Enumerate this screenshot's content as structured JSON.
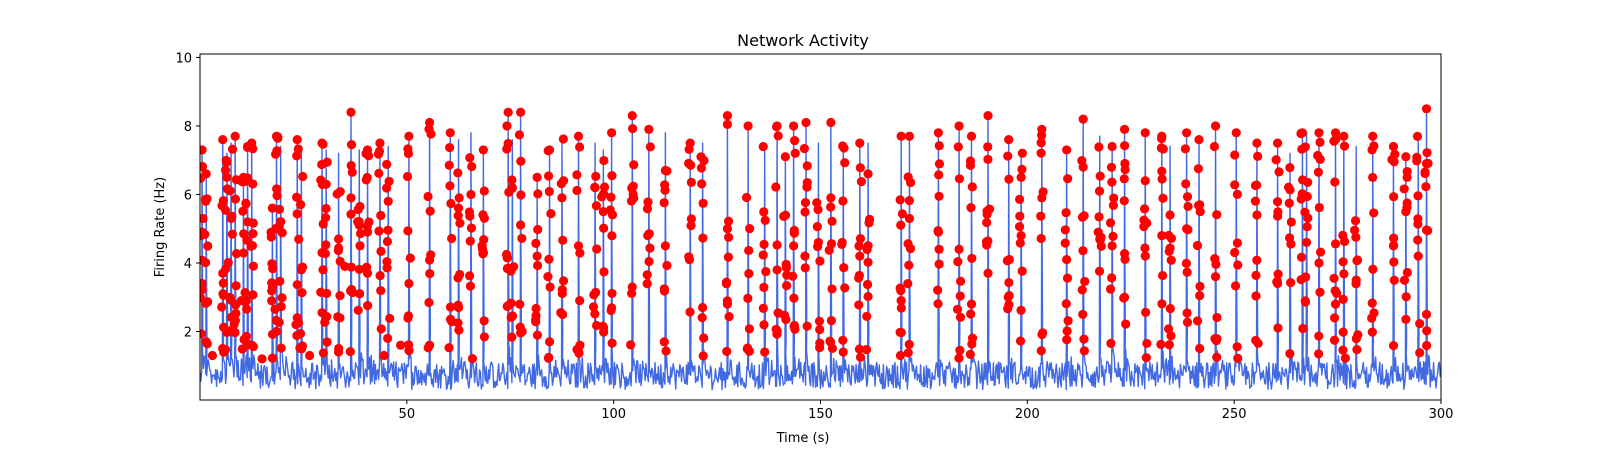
{
  "chart_data": {
    "type": "line",
    "title": "Network Activity",
    "xlabel": "Time (s)",
    "ylabel": "Firing Rate (Hz)",
    "xlim": [
      0,
      300
    ],
    "ylim": [
      0,
      10.1
    ],
    "xticks": [
      50,
      100,
      150,
      200,
      250,
      300
    ],
    "yticks": [
      2,
      4,
      6,
      8,
      10
    ],
    "grid": false,
    "colors": {
      "line": "#4169E1",
      "markers": "#FF0000"
    },
    "series": [
      {
        "kind": "line",
        "baseline": [
          0.3,
          1.1
        ],
        "bursts": [
          [
            0.5,
            7.3
          ],
          [
            1.5,
            6.6
          ],
          [
            5.5,
            7.6
          ],
          [
            6.5,
            7.2
          ],
          [
            7.5,
            7.5
          ],
          [
            8.5,
            7.7
          ],
          [
            10.5,
            6.5
          ],
          [
            11.5,
            7.4
          ],
          [
            12.5,
            7.5
          ],
          [
            17.5,
            5.6
          ],
          [
            18.5,
            7.7
          ],
          [
            19.5,
            7.4
          ],
          [
            23.5,
            7.6
          ],
          [
            24.5,
            7.3
          ],
          [
            29.5,
            7.5
          ],
          [
            30.5,
            7.3
          ],
          [
            33.5,
            7.2
          ],
          [
            36.5,
            8.4
          ],
          [
            38.5,
            7.3
          ],
          [
            40.5,
            7.3
          ],
          [
            43.5,
            7.5
          ],
          [
            45.5,
            7.4
          ],
          [
            50.5,
            7.7
          ],
          [
            55.5,
            8.1
          ],
          [
            60.5,
            7.8
          ],
          [
            62.5,
            7.6
          ],
          [
            65.5,
            7.8
          ],
          [
            68.5,
            7.3
          ],
          [
            74.5,
            8.4
          ],
          [
            75.5,
            7.6
          ],
          [
            77.5,
            8.4
          ],
          [
            81.5,
            6.5
          ],
          [
            84.5,
            7.3
          ],
          [
            87.5,
            7.7
          ],
          [
            91.5,
            7.7
          ],
          [
            95.5,
            7.5
          ],
          [
            97.5,
            7.3
          ],
          [
            99.5,
            7.8
          ],
          [
            104.5,
            8.3
          ],
          [
            108.5,
            7.9
          ],
          [
            112.5,
            7.8
          ],
          [
            118.5,
            7.5
          ],
          [
            121.5,
            7.5
          ],
          [
            127.5,
            8.3
          ],
          [
            132.5,
            8.0
          ],
          [
            136.5,
            7.4
          ],
          [
            139.5,
            8.0
          ],
          [
            141.5,
            7.1
          ],
          [
            143.5,
            8.0
          ],
          [
            146.5,
            8.1
          ],
          [
            149.5,
            7.5
          ],
          [
            152.5,
            8.1
          ],
          [
            155.5,
            7.5
          ],
          [
            159.5,
            7.5
          ],
          [
            161.5,
            7.5
          ],
          [
            169.5,
            7.7
          ],
          [
            171.5,
            7.7
          ],
          [
            178.5,
            7.8
          ],
          [
            183.5,
            8.0
          ],
          [
            186.5,
            7.7
          ],
          [
            190.5,
            8.3
          ],
          [
            195.5,
            7.6
          ],
          [
            198.5,
            7.3
          ],
          [
            203.5,
            7.9
          ],
          [
            209.5,
            7.3
          ],
          [
            213.5,
            8.2
          ],
          [
            217.5,
            7.7
          ],
          [
            220.5,
            7.4
          ],
          [
            223.5,
            7.9
          ],
          [
            228.5,
            7.8
          ],
          [
            232.5,
            7.7
          ],
          [
            234.5,
            7.4
          ],
          [
            238.5,
            7.8
          ],
          [
            241.5,
            7.6
          ],
          [
            245.5,
            8.0
          ],
          [
            250.5,
            7.8
          ],
          [
            255.5,
            7.5
          ],
          [
            260.5,
            7.5
          ],
          [
            263.5,
            7.2
          ],
          [
            266.5,
            7.8
          ],
          [
            267.5,
            7.8
          ],
          [
            270.5,
            7.8
          ],
          [
            274.5,
            7.8
          ],
          [
            276.5,
            7.7
          ],
          [
            279.5,
            7.4
          ],
          [
            283.5,
            7.7
          ],
          [
            288.5,
            7.4
          ],
          [
            291.5,
            7.1
          ],
          [
            294.5,
            7.7
          ],
          [
            296.5,
            8.5
          ]
        ]
      },
      {
        "kind": "scatter",
        "points_per_burst": 9,
        "markers": [
          [
            0.5,
            7.3
          ],
          [
            0.5,
            4.9
          ],
          [
            0.5,
            3.4
          ],
          [
            1.5,
            6.6
          ],
          [
            1.5,
            1.7
          ],
          [
            3.0,
            1.3
          ],
          [
            5.5,
            7.6
          ],
          [
            5.5,
            3.7
          ],
          [
            6.5,
            6.5
          ],
          [
            8.5,
            7.7
          ],
          [
            10.0,
            2.9
          ],
          [
            10.5,
            6.5
          ],
          [
            11.5,
            7.4
          ],
          [
            11.5,
            5.2
          ],
          [
            12.5,
            7.5
          ],
          [
            12.5,
            1.6
          ],
          [
            15.0,
            1.2
          ],
          [
            17.5,
            5.6
          ],
          [
            17.5,
            3.3
          ],
          [
            18.5,
            7.7
          ],
          [
            18.5,
            2.0
          ],
          [
            23.5,
            7.6
          ],
          [
            23.5,
            2.4
          ],
          [
            24.5,
            3.8
          ],
          [
            26.5,
            1.3
          ],
          [
            29.5,
            7.5
          ],
          [
            29.5,
            4.3
          ],
          [
            30.5,
            6.3
          ],
          [
            33.5,
            4.7
          ],
          [
            33.5,
            1.4
          ],
          [
            35.0,
            3.9
          ],
          [
            36.5,
            8.4
          ],
          [
            36.5,
            5.9
          ],
          [
            38.5,
            5.1
          ],
          [
            40.5,
            7.3
          ],
          [
            40.5,
            3.7
          ],
          [
            43.5,
            7.5
          ],
          [
            44.5,
            1.3
          ],
          [
            45.5,
            5.8
          ],
          [
            48.5,
            1.6
          ],
          [
            50.5,
            7.7
          ],
          [
            50.5,
            3.4
          ],
          [
            55.5,
            8.1
          ],
          [
            55.5,
            1.6
          ],
          [
            60.5,
            7.8
          ],
          [
            62.5,
            5.6
          ],
          [
            62.5,
            2.7
          ],
          [
            65.5,
            6.0
          ],
          [
            68.5,
            7.3
          ],
          [
            68.5,
            4.3
          ],
          [
            74.5,
            8.4
          ],
          [
            75.5,
            6.2
          ],
          [
            77.5,
            8.4
          ],
          [
            81.5,
            6.5
          ],
          [
            81.5,
            4.2
          ],
          [
            84.5,
            7.3
          ],
          [
            84.5,
            1.7
          ],
          [
            87.5,
            5.9
          ],
          [
            91.5,
            7.7
          ],
          [
            91.5,
            4.5
          ],
          [
            95.5,
            6.2
          ],
          [
            97.5,
            5.5
          ],
          [
            99.5,
            7.8
          ],
          [
            104.5,
            8.3
          ],
          [
            104.5,
            3.3
          ],
          [
            108.5,
            7.9
          ],
          [
            112.5,
            6.7
          ],
          [
            112.5,
            4.5
          ],
          [
            118.5,
            7.5
          ],
          [
            121.5,
            2.7
          ],
          [
            127.5,
            8.3
          ],
          [
            127.5,
            5.0
          ],
          [
            127.5,
            2.8
          ],
          [
            132.5,
            8.0
          ],
          [
            136.5,
            1.4
          ],
          [
            139.5,
            8.0
          ],
          [
            139.5,
            3.8
          ],
          [
            141.5,
            7.1
          ],
          [
            143.5,
            8.0
          ],
          [
            143.5,
            4.5
          ],
          [
            146.5,
            8.1
          ],
          [
            149.5,
            4.6
          ],
          [
            152.5,
            8.1
          ],
          [
            152.5,
            5.9
          ],
          [
            155.5,
            1.4
          ],
          [
            159.5,
            7.5
          ],
          [
            159.5,
            4.2
          ],
          [
            161.5,
            6.6
          ],
          [
            169.5,
            7.7
          ],
          [
            169.5,
            2.9
          ],
          [
            171.5,
            7.7
          ],
          [
            171.5,
            5.3
          ],
          [
            178.5,
            7.8
          ],
          [
            178.5,
            4.9
          ],
          [
            183.5,
            8.0
          ],
          [
            183.5,
            4.4
          ],
          [
            186.5,
            7.7
          ],
          [
            186.5,
            2.8
          ],
          [
            190.5,
            8.3
          ],
          [
            190.5,
            3.7
          ],
          [
            195.5,
            7.6
          ],
          [
            198.5,
            6.5
          ],
          [
            198.5,
            4.8
          ],
          [
            203.5,
            7.9
          ],
          [
            203.5,
            5.9
          ],
          [
            209.5,
            7.3
          ],
          [
            209.5,
            4.1
          ],
          [
            213.5,
            8.2
          ],
          [
            213.5,
            6.8
          ],
          [
            217.5,
            4.7
          ],
          [
            220.5,
            7.4
          ],
          [
            220.5,
            4.5
          ],
          [
            223.5,
            7.9
          ],
          [
            223.5,
            3.0
          ],
          [
            228.5,
            7.8
          ],
          [
            228.5,
            6.4
          ],
          [
            232.5,
            7.7
          ],
          [
            232.5,
            4.8
          ],
          [
            234.5,
            5.4
          ],
          [
            238.5,
            7.8
          ],
          [
            238.5,
            5.0
          ],
          [
            241.5,
            7.6
          ],
          [
            245.5,
            8.0
          ],
          [
            245.5,
            3.6
          ],
          [
            250.5,
            7.8
          ],
          [
            255.5,
            7.5
          ],
          [
            255.5,
            5.4
          ],
          [
            260.5,
            7.5
          ],
          [
            260.5,
            3.4
          ],
          [
            266.5,
            7.8
          ],
          [
            266.5,
            6.0
          ],
          [
            267.5,
            4.6
          ],
          [
            270.5,
            7.8
          ],
          [
            270.5,
            4.0
          ],
          [
            274.5,
            7.8
          ],
          [
            274.5,
            2.8
          ],
          [
            276.5,
            7.7
          ],
          [
            279.5,
            3.5
          ],
          [
            283.5,
            7.7
          ],
          [
            288.5,
            7.4
          ],
          [
            288.5,
            4.5
          ],
          [
            291.5,
            7.1
          ],
          [
            291.5,
            5.5
          ],
          [
            294.5,
            4.2
          ],
          [
            296.5,
            8.5
          ],
          [
            296.5,
            6.9
          ],
          [
            296.5,
            2.5
          ]
        ]
      }
    ]
  }
}
